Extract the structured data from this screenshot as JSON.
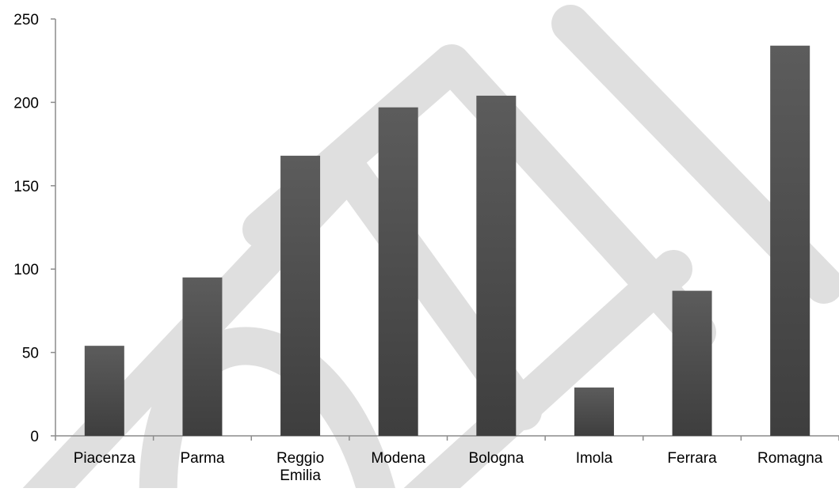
{
  "chart_data": {
    "type": "bar",
    "categories": [
      [
        "Piacenza"
      ],
      [
        "Parma"
      ],
      [
        "Reggio",
        "Emilia"
      ],
      [
        "Modena"
      ],
      [
        "Bologna"
      ],
      [
        "Imola"
      ],
      [
        "Ferrara"
      ],
      [
        "Romagna"
      ]
    ],
    "values": [
      54,
      95,
      168,
      197,
      204,
      29,
      87,
      234
    ],
    "ylim": [
      0,
      250
    ],
    "yticks": [
      "0",
      "50",
      "100",
      "150",
      "200",
      "250"
    ],
    "grid": false,
    "legend": "none"
  },
  "colors": {
    "bar_top": "#5c5c5c",
    "bar_bottom": "#3e3e3e",
    "axis": "#8c8c8c",
    "watermark": "#dcdcdc"
  }
}
